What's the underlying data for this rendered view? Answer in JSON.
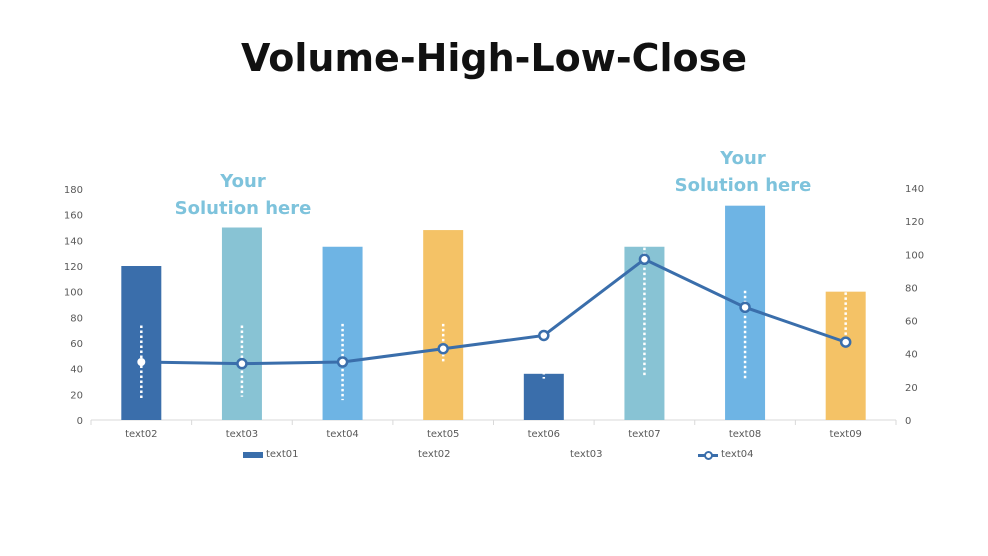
{
  "title": "Volume-High-Low-Close",
  "annotations": [
    {
      "line1": "Your",
      "line2": "Solution here"
    },
    {
      "line1": "Your",
      "line2": "Solution here"
    }
  ],
  "colors": {
    "dark_blue": "#3a6eab",
    "teal": "#88c3d4",
    "light_blue": "#6eb4e4",
    "gold": "#f4c266",
    "annotation": "#7ec3dc",
    "line": "#3a6eab"
  },
  "axes": {
    "left_ticks": [
      "0",
      "20",
      "40",
      "60",
      "80",
      "100",
      "120",
      "140",
      "160",
      "180"
    ],
    "right_ticks": [
      "0",
      "20",
      "40",
      "60",
      "80",
      "100",
      "120",
      "140"
    ]
  },
  "legend": {
    "items": [
      "text01",
      "text02",
      "text03",
      "text04"
    ]
  },
  "chart_data": {
    "type": "bar",
    "title": "Volume-High-Low-Close",
    "categories": [
      "text02",
      "text03",
      "text04",
      "text05",
      "text06",
      "text07",
      "text08",
      "text09"
    ],
    "series": [
      {
        "name": "text01",
        "kind": "bar",
        "axis": "left",
        "values": [
          120,
          150,
          135,
          148,
          36,
          135,
          167,
          100
        ],
        "bar_colors": [
          "#3a6eab",
          "#88c3d4",
          "#6eb4e4",
          "#f4c266",
          "#3a6eab",
          "#88c3d4",
          "#6eb4e4",
          "#f4c266"
        ]
      },
      {
        "name": "text02",
        "kind": "high",
        "axis": "right",
        "values": [
          57,
          57,
          58,
          58,
          29,
          104,
          78,
          77
        ]
      },
      {
        "name": "text03",
        "kind": "low",
        "axis": "right",
        "values": [
          12,
          14,
          12,
          35,
          25,
          27,
          24,
          47
        ]
      },
      {
        "name": "text04",
        "kind": "line-close",
        "axis": "right",
        "values": [
          35,
          34,
          35,
          43,
          51,
          97,
          68,
          47
        ]
      }
    ],
    "xlabel": "",
    "ylabel": "",
    "ylim": [
      0,
      180
    ],
    "y2lim": [
      0,
      140
    ],
    "grid": false,
    "legend_position": "bottom"
  }
}
